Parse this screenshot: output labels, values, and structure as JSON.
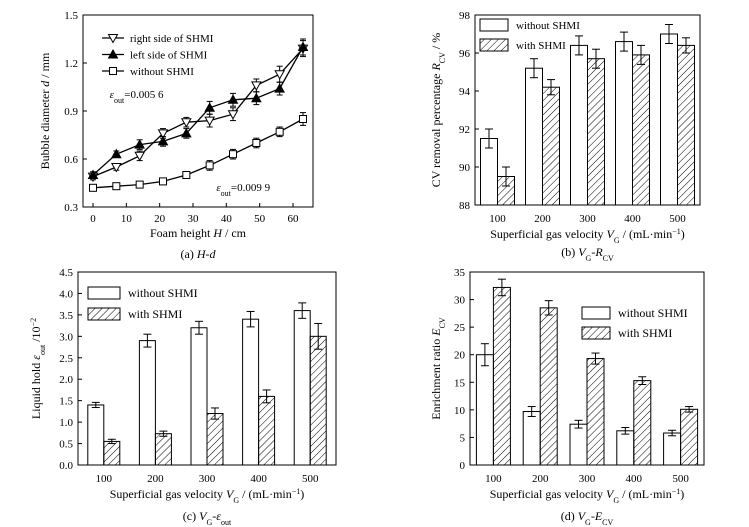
{
  "chart_data": [
    {
      "type": "line",
      "caption": "(a) H-d",
      "xlabel": "Foam height H / cm",
      "ylabel": "Bubble diameter d / mm",
      "xlim": [
        -3,
        66
      ],
      "ylim": [
        0.3,
        1.5
      ],
      "xticks": [
        0,
        10,
        20,
        30,
        40,
        50,
        60
      ],
      "yticks": [
        "0.3",
        "0.6",
        "0.9",
        "1.2",
        "1.5"
      ],
      "legend_position": "top-left",
      "series": [
        {
          "name": "right side of SHMI",
          "marker": "triangle-down-open",
          "x": [
            0,
            7,
            14,
            21,
            28,
            35,
            42,
            49,
            56,
            63
          ],
          "y": [
            0.49,
            0.55,
            0.62,
            0.76,
            0.83,
            0.84,
            0.88,
            1.06,
            1.13,
            1.29
          ],
          "err": [
            0.02,
            0.02,
            0.03,
            0.03,
            0.03,
            0.04,
            0.04,
            0.04,
            0.05,
            0.05
          ]
        },
        {
          "name": "left side of SHMI",
          "marker": "triangle-up-filled",
          "x": [
            0,
            7,
            14,
            21,
            28,
            35,
            42,
            49,
            56,
            63
          ],
          "y": [
            0.5,
            0.63,
            0.69,
            0.71,
            0.76,
            0.92,
            0.97,
            0.98,
            1.04,
            1.3
          ],
          "err": [
            0.02,
            0.02,
            0.03,
            0.03,
            0.03,
            0.04,
            0.04,
            0.04,
            0.04,
            0.05
          ]
        },
        {
          "name": "without SHMI",
          "marker": "square-open",
          "x": [
            0,
            7,
            14,
            21,
            28,
            35,
            42,
            49,
            56,
            63
          ],
          "y": [
            0.42,
            0.43,
            0.44,
            0.46,
            0.5,
            0.56,
            0.63,
            0.7,
            0.77,
            0.85
          ],
          "err": [
            0.02,
            0.02,
            0.02,
            0.02,
            0.02,
            0.03,
            0.03,
            0.03,
            0.03,
            0.04
          ]
        }
      ],
      "annotations": [
        {
          "text": "εout=0.005 6",
          "x": 5,
          "y": 0.98
        },
        {
          "text": "εout=0.009 9",
          "x": 37,
          "y": 0.4
        }
      ]
    },
    {
      "type": "bar",
      "caption": "(b) VG-RCV",
      "xlabel": "Superficial gas velocity VG / (mL·min⁻¹)",
      "ylabel": "CV removal percentage RCV / %",
      "categories": [
        "100",
        "200",
        "300",
        "400",
        "500"
      ],
      "ylim": [
        88,
        98
      ],
      "yticks": [
        "88",
        "90",
        "92",
        "94",
        "96",
        "98"
      ],
      "legend_position": "top-left",
      "series": [
        {
          "name": "without SHMI",
          "fill": "open",
          "values": [
            91.5,
            95.2,
            96.4,
            96.6,
            97.0
          ],
          "err": [
            0.5,
            0.5,
            0.5,
            0.5,
            0.5
          ]
        },
        {
          "name": "with SHMI",
          "fill": "hatched",
          "values": [
            89.5,
            94.2,
            95.7,
            95.9,
            96.4
          ],
          "err": [
            0.5,
            0.4,
            0.5,
            0.5,
            0.4
          ]
        }
      ]
    },
    {
      "type": "bar",
      "caption": "(c) VG-εout",
      "xlabel": "Superficial gas velocity VG / (mL·min⁻¹)",
      "ylabel": "Liquid hold εout /10⁻²",
      "categories": [
        "100",
        "200",
        "300",
        "400",
        "500"
      ],
      "ylim": [
        0,
        4.5
      ],
      "yticks": [
        "0.0",
        "0.5",
        "1.0",
        "1.5",
        "2.0",
        "2.5",
        "3.0",
        "3.5",
        "4.0",
        "4.5"
      ],
      "legend_position": "top-left",
      "series": [
        {
          "name": "without SHMI",
          "fill": "open",
          "values": [
            1.4,
            2.9,
            3.2,
            3.4,
            3.6
          ],
          "err": [
            0.06,
            0.15,
            0.15,
            0.18,
            0.18
          ]
        },
        {
          "name": "with SHMI",
          "fill": "hatched",
          "values": [
            0.55,
            0.73,
            1.2,
            1.6,
            3.0
          ],
          "err": [
            0.05,
            0.06,
            0.13,
            0.15,
            0.3
          ]
        }
      ]
    },
    {
      "type": "bar",
      "caption": "(d) VG-ECV",
      "xlabel": "Superficial gas velocity VG / (mL·min⁻¹)",
      "ylabel": "Enrichment ratio ECV",
      "categories": [
        "100",
        "200",
        "300",
        "400",
        "500"
      ],
      "ylim": [
        0,
        35
      ],
      "yticks": [
        "0",
        "5",
        "10",
        "15",
        "20",
        "25",
        "30",
        "35"
      ],
      "legend_position": "top-right",
      "series": [
        {
          "name": "without SHMI",
          "fill": "open",
          "values": [
            20.0,
            9.7,
            7.4,
            6.2,
            5.8
          ],
          "err": [
            2.0,
            0.9,
            0.7,
            0.6,
            0.5
          ]
        },
        {
          "name": "with SHMI",
          "fill": "hatched",
          "values": [
            32.2,
            28.5,
            19.3,
            15.3,
            10.1
          ],
          "err": [
            1.5,
            1.3,
            1.0,
            0.7,
            0.5
          ]
        }
      ]
    }
  ]
}
